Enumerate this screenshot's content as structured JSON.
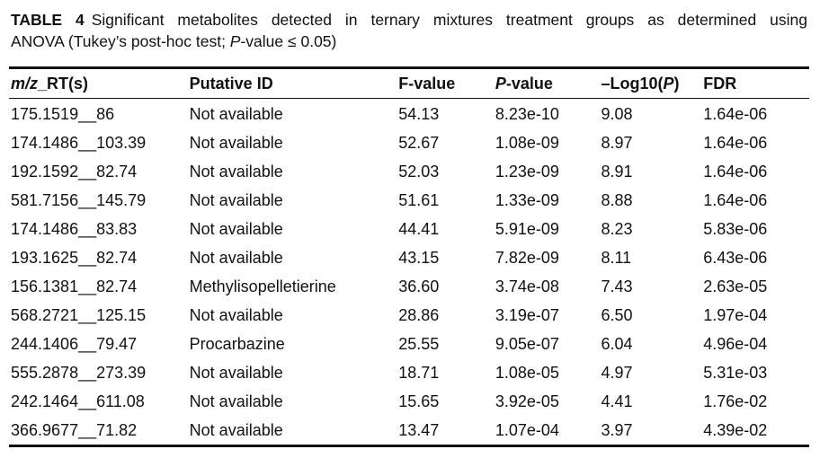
{
  "caption": {
    "label": "TABLE 4",
    "line1": "Significant metabolites detected in ternary mixtures treatment groups as determined using",
    "line2_prefix": "ANOVA (Tukey’s post-hoc test; ",
    "line2_italic": "P",
    "line2_suffix": "-value ≤ 0.05)"
  },
  "table": {
    "headers": {
      "mz_italic": "m/z",
      "mz_suffix": "_RT(s)",
      "putative_id": "Putative ID",
      "f_value": "F-value",
      "p_italic": "P",
      "p_suffix": "-value",
      "log_prefix": "–Log10(",
      "log_italic": "P",
      "log_suffix": ")",
      "fdr": "FDR"
    },
    "rows": [
      [
        "175.1519__86",
        "Not available",
        "54.13",
        "8.23e-10",
        "9.08",
        "1.64e-06"
      ],
      [
        "174.1486__103.39",
        "Not available",
        "52.67",
        "1.08e-09",
        "8.97",
        "1.64e-06"
      ],
      [
        "192.1592__82.74",
        "Not available",
        "52.03",
        "1.23e-09",
        "8.91",
        "1.64e-06"
      ],
      [
        "581.7156__145.79",
        "Not available",
        "51.61",
        "1.33e-09",
        "8.88",
        "1.64e-06"
      ],
      [
        "174.1486__83.83",
        "Not available",
        "44.41",
        "5.91e-09",
        "8.23",
        "5.83e-06"
      ],
      [
        "193.1625__82.74",
        "Not available",
        "43.15",
        "7.82e-09",
        "8.11",
        "6.43e-06"
      ],
      [
        "156.1381__82.74",
        "Methylisopelletierine",
        "36.60",
        "3.74e-08",
        "7.43",
        "2.63e-05"
      ],
      [
        "568.2721__125.15",
        "Not available",
        "28.86",
        "3.19e-07",
        "6.50",
        "1.97e-04"
      ],
      [
        "244.1406__79.47",
        "Procarbazine",
        "25.55",
        "9.05e-07",
        "6.04",
        "4.96e-04"
      ],
      [
        "555.2878__273.39",
        "Not available",
        "18.71",
        "1.08e-05",
        "4.97",
        "5.31e-03"
      ],
      [
        "242.1464__611.08",
        "Not available",
        "15.65",
        "3.92e-05",
        "4.41",
        "1.76e-02"
      ],
      [
        "366.9677__71.82",
        "Not available",
        "13.47",
        "1.07e-04",
        "3.97",
        "4.39e-02"
      ]
    ]
  }
}
